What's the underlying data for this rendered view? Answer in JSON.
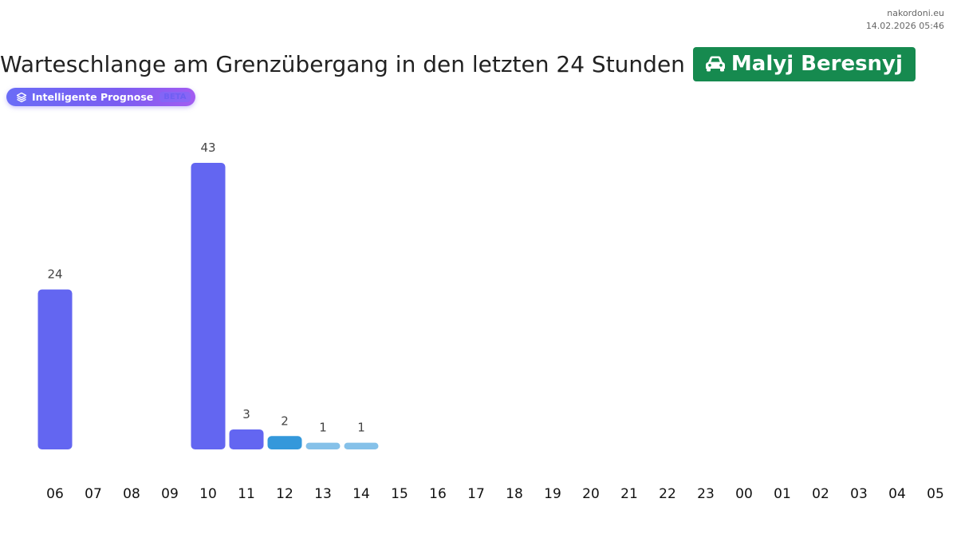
{
  "site": {
    "name": "nakordoni.eu",
    "timestamp": "14.02.2026 05:46"
  },
  "header": {
    "title": "Warteschlange am Grenzübergang in den letzten 24 Stunden",
    "crossing": "Malyj Beresnyj",
    "crossing_icon": "car-icon"
  },
  "ai_badge": {
    "label": "Intelligente Prognose",
    "tag": "BETA",
    "icon": "layers-icon"
  },
  "colors": {
    "bar_primary": "#6366f1",
    "bar_secondary": "#3498db",
    "bar_forecast": "#85c1e9",
    "badge_green": "#168a4f"
  },
  "chart_data": {
    "type": "bar",
    "categories": [
      "06",
      "07",
      "08",
      "09",
      "10",
      "11",
      "12",
      "13",
      "14",
      "15",
      "16",
      "17",
      "18",
      "19",
      "20",
      "21",
      "22",
      "23",
      "00",
      "01",
      "02",
      "03",
      "04",
      "05"
    ],
    "values": [
      24,
      null,
      null,
      null,
      43,
      3,
      2,
      1,
      1,
      null,
      null,
      null,
      null,
      null,
      null,
      null,
      null,
      null,
      null,
      null,
      null,
      null,
      null,
      null
    ],
    "bar_colors": [
      "#6366f1",
      null,
      null,
      null,
      "#6366f1",
      "#6366f1",
      "#3498db",
      "#85c1e9",
      "#85c1e9",
      null,
      null,
      null,
      null,
      null,
      null,
      null,
      null,
      null,
      null,
      null,
      null,
      null,
      null,
      null
    ],
    "title": "",
    "xlabel": "",
    "ylabel": "",
    "ylim": [
      0,
      43
    ],
    "grid": false,
    "legend": "none"
  }
}
